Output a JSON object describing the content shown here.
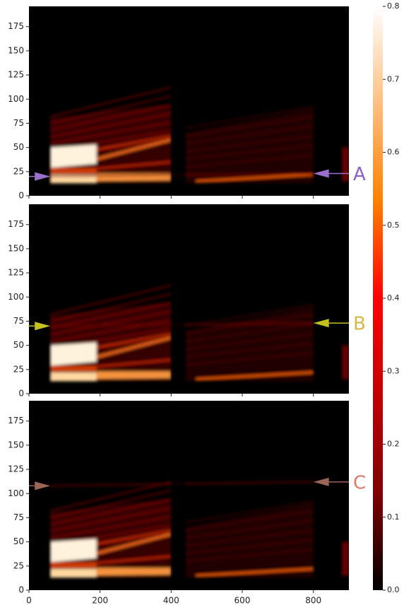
{
  "chart_data": [
    {
      "type": "heatmap",
      "xlim": [
        0,
        900
      ],
      "xticks": [
        0,
        200,
        400,
        600,
        800
      ],
      "show_xtick_labels": false,
      "ylim": [
        0,
        196
      ],
      "yticks": [
        0,
        25,
        50,
        75,
        100,
        125,
        150,
        175
      ],
      "annotation": {
        "text": "A",
        "arrow_color": "#9b6fcb",
        "text_color": "#8a5fc8",
        "points": [
          [
            60,
            20
          ],
          [
            800,
            23
          ]
        ]
      }
    },
    {
      "type": "heatmap",
      "xlim": [
        0,
        900
      ],
      "xticks": [
        0,
        200,
        400,
        600,
        800
      ],
      "show_xtick_labels": false,
      "ylim": [
        0,
        196
      ],
      "yticks": [
        0,
        25,
        50,
        75,
        100,
        125,
        150,
        175
      ],
      "annotation": {
        "text": "B",
        "arrow_color": "#c4c020",
        "text_color": "#d8b848",
        "points": [
          [
            60,
            70
          ],
          [
            800,
            73
          ]
        ]
      }
    },
    {
      "type": "heatmap",
      "xlim": [
        0,
        900
      ],
      "xticks": [
        0,
        200,
        400,
        600,
        800
      ],
      "show_xtick_labels": true,
      "ylim": [
        0,
        196
      ],
      "yticks": [
        0,
        25,
        50,
        75,
        100,
        125,
        150,
        175
      ],
      "annotation": {
        "text": "C",
        "arrow_color": "#9c6556",
        "text_color": "#e07a6a",
        "points": [
          [
            60,
            108
          ],
          [
            800,
            112
          ]
        ]
      }
    },
    {
      "type": "colorbar",
      "clim": [
        0,
        0.8
      ],
      "ticks": [
        {
          "value": 0,
          "label": "0.0"
        },
        0.1,
        0.2,
        0.3,
        0.4,
        0.5,
        0.6,
        0.7,
        0.8
      ],
      "colormap": [
        "#000000",
        "#800000",
        "#c00000",
        "#ff0000",
        "#ff8000",
        "#ffbf80",
        "#ffffff"
      ]
    }
  ]
}
